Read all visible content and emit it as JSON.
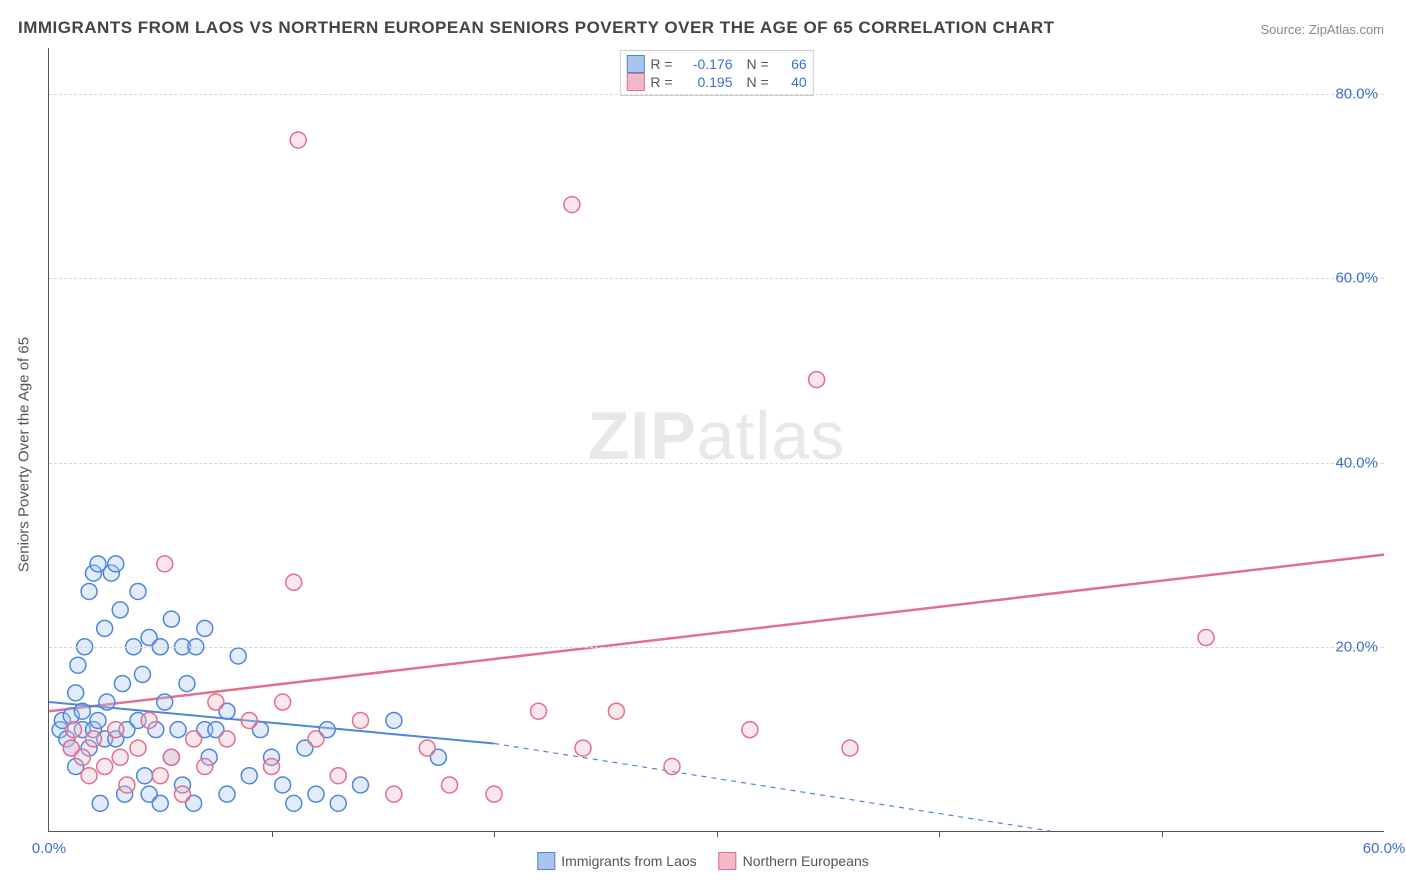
{
  "title": "IMMIGRANTS FROM LAOS VS NORTHERN EUROPEAN SENIORS POVERTY OVER THE AGE OF 65 CORRELATION CHART",
  "source": "Source: ZipAtlas.com",
  "ylabel": "Seniors Poverty Over the Age of 65",
  "watermark_heavy": "ZIP",
  "watermark_light": "atlas",
  "chart": {
    "type": "scatter",
    "xlim": [
      0,
      60
    ],
    "ylim": [
      0,
      85
    ],
    "x_ticks": [
      0,
      60
    ],
    "x_tick_labels": [
      "0.0%",
      "60.0%"
    ],
    "x_minor_ticks": [
      10,
      20,
      30,
      40,
      50
    ],
    "y_ticks": [
      20,
      40,
      60,
      80
    ],
    "y_tick_labels": [
      "20.0%",
      "40.0%",
      "60.0%",
      "80.0%"
    ],
    "background_color": "#ffffff",
    "grid_color": "#d8d8d8",
    "tick_label_color": "#3a6fcf",
    "axis_color": "#555555",
    "marker_radius": 8,
    "marker_stroke_width": 1.5,
    "marker_fill_opacity": 0.35,
    "series": [
      {
        "name": "Immigrants from Laos",
        "color_stroke": "#4f86d9",
        "color_fill": "#a9c5ee",
        "R": "-0.176",
        "N": "66",
        "trend": {
          "x1": 0,
          "y1": 14,
          "x2": 20,
          "y2": 9.5,
          "dash_x2": 45,
          "dash_y2": 0,
          "width": 2
        },
        "points": [
          [
            0.5,
            11
          ],
          [
            0.6,
            12
          ],
          [
            0.8,
            10
          ],
          [
            1.0,
            12.5
          ],
          [
            1.0,
            9
          ],
          [
            1.2,
            15
          ],
          [
            1.2,
            7
          ],
          [
            1.3,
            18
          ],
          [
            1.5,
            11
          ],
          [
            1.5,
            13
          ],
          [
            1.6,
            20
          ],
          [
            1.8,
            9
          ],
          [
            1.8,
            26
          ],
          [
            2.0,
            11
          ],
          [
            2.0,
            28
          ],
          [
            2.2,
            12
          ],
          [
            2.2,
            29
          ],
          [
            2.3,
            3
          ],
          [
            2.5,
            22
          ],
          [
            2.5,
            10
          ],
          [
            2.6,
            14
          ],
          [
            2.8,
            28
          ],
          [
            3.0,
            29
          ],
          [
            3.0,
            10
          ],
          [
            3.2,
            24
          ],
          [
            3.3,
            16
          ],
          [
            3.4,
            4
          ],
          [
            3.5,
            11
          ],
          [
            3.8,
            20
          ],
          [
            4.0,
            12
          ],
          [
            4.0,
            26
          ],
          [
            4.2,
            17
          ],
          [
            4.3,
            6
          ],
          [
            4.5,
            21
          ],
          [
            4.5,
            4
          ],
          [
            4.8,
            11
          ],
          [
            5.0,
            20
          ],
          [
            5.0,
            3
          ],
          [
            5.2,
            14
          ],
          [
            5.5,
            23
          ],
          [
            5.5,
            8
          ],
          [
            5.8,
            11
          ],
          [
            6.0,
            20
          ],
          [
            6.0,
            5
          ],
          [
            6.2,
            16
          ],
          [
            6.5,
            3
          ],
          [
            6.6,
            20
          ],
          [
            7.0,
            11
          ],
          [
            7.0,
            22
          ],
          [
            7.2,
            8
          ],
          [
            7.5,
            11
          ],
          [
            8.0,
            13
          ],
          [
            8.0,
            4
          ],
          [
            8.5,
            19
          ],
          [
            9.0,
            6
          ],
          [
            9.5,
            11
          ],
          [
            10.0,
            8
          ],
          [
            10.5,
            5
          ],
          [
            11.0,
            3
          ],
          [
            11.5,
            9
          ],
          [
            12.0,
            4
          ],
          [
            12.5,
            11
          ],
          [
            13.0,
            3
          ],
          [
            14.0,
            5
          ],
          [
            15.5,
            12
          ],
          [
            17.5,
            8
          ]
        ]
      },
      {
        "name": "Northern Europeans",
        "color_stroke": "#e26f8f",
        "color_fill": "#f2b9c9",
        "R": "0.195",
        "N": "40",
        "trend": {
          "x1": 0,
          "y1": 13,
          "x2": 60,
          "y2": 30,
          "width": 2.5
        },
        "points": [
          [
            1.0,
            9
          ],
          [
            1.1,
            11
          ],
          [
            1.5,
            8
          ],
          [
            1.8,
            6
          ],
          [
            2.0,
            10
          ],
          [
            2.5,
            7
          ],
          [
            3.0,
            11
          ],
          [
            3.2,
            8
          ],
          [
            3.5,
            5
          ],
          [
            4.0,
            9
          ],
          [
            4.5,
            12
          ],
          [
            5.0,
            6
          ],
          [
            5.2,
            29
          ],
          [
            5.5,
            8
          ],
          [
            6.0,
            4
          ],
          [
            6.5,
            10
          ],
          [
            7.0,
            7
          ],
          [
            7.5,
            14
          ],
          [
            8.0,
            10
          ],
          [
            9.0,
            12
          ],
          [
            10.0,
            7
          ],
          [
            10.5,
            14
          ],
          [
            11.0,
            27
          ],
          [
            11.2,
            75
          ],
          [
            12.0,
            10
          ],
          [
            13.0,
            6
          ],
          [
            14.0,
            12
          ],
          [
            15.5,
            4
          ],
          [
            17.0,
            9
          ],
          [
            18.0,
            5
          ],
          [
            20.0,
            4
          ],
          [
            22.0,
            13
          ],
          [
            23.5,
            68
          ],
          [
            24.0,
            9
          ],
          [
            25.5,
            13
          ],
          [
            28.0,
            7
          ],
          [
            31.5,
            11
          ],
          [
            34.5,
            49
          ],
          [
            36.0,
            9
          ],
          [
            52.0,
            21
          ]
        ]
      }
    ]
  },
  "legend": {
    "items": [
      {
        "label": "Immigrants from Laos"
      },
      {
        "label": "Northern Europeans"
      }
    ]
  }
}
